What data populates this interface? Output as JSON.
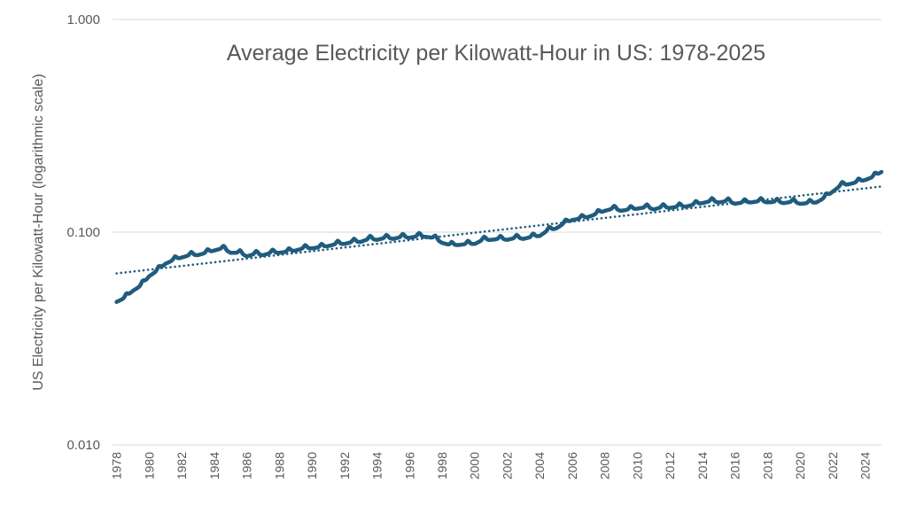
{
  "chart_data": {
    "type": "line",
    "title": "Average Electricity per Kilowatt-Hour in US: 1978-2025",
    "ylabel": "US Electricity per Kilowatt-Hour  (logarithmic scale)",
    "xlabel": "",
    "y_scale": "log",
    "ylim": [
      0.01,
      1.0
    ],
    "y_ticks": [
      "0.010",
      "0.100",
      "1.000"
    ],
    "y_tick_values": [
      0.01,
      0.1,
      1.0
    ],
    "x_ticks": [
      "1978",
      "1980",
      "1982",
      "1984",
      "1986",
      "1988",
      "1990",
      "1992",
      "1994",
      "1996",
      "1998",
      "2000",
      "2002",
      "2004",
      "2006",
      "2008",
      "2010",
      "2012",
      "2014",
      "2016",
      "2018",
      "2020",
      "2022",
      "2024"
    ],
    "x_tick_values": [
      1978,
      1980,
      1982,
      1984,
      1986,
      1988,
      1990,
      1992,
      1994,
      1996,
      1998,
      2000,
      2002,
      2004,
      2006,
      2008,
      2010,
      2012,
      2014,
      2016,
      2018,
      2020,
      2022,
      2024
    ],
    "xlim": [
      1977.75,
      2025.0
    ],
    "grid": "horizontal",
    "legend": "none",
    "series": [
      {
        "style": "solid-thick",
        "color": "#1f5c7e",
        "seasonal": "monthly summer peaks",
        "x": [
          1978.0,
          1978.5,
          1979.0,
          1979.5,
          1980.0,
          1980.5,
          1981.0,
          1981.5,
          1982.0,
          1982.5,
          1983.0,
          1983.5,
          1984.0,
          1984.5,
          1985.0,
          1985.5,
          1986.0,
          1986.5,
          1987.0,
          1987.5,
          1988.0,
          1988.5,
          1989.0,
          1989.5,
          1990.0,
          1990.5,
          1991.0,
          1991.5,
          1992.0,
          1992.5,
          1993.0,
          1993.5,
          1994.0,
          1994.5,
          1995.0,
          1995.5,
          1996.0,
          1996.5,
          1997.0,
          1997.5,
          1998.0,
          1998.5,
          1999.0,
          1999.5,
          2000.0,
          2000.5,
          2001.0,
          2001.5,
          2002.0,
          2002.5,
          2003.0,
          2003.5,
          2004.0,
          2004.5,
          2005.0,
          2005.5,
          2006.0,
          2006.5,
          2007.0,
          2007.5,
          2008.0,
          2008.5,
          2009.0,
          2009.5,
          2010.0,
          2010.5,
          2011.0,
          2011.5,
          2012.0,
          2012.5,
          2013.0,
          2013.5,
          2014.0,
          2014.5,
          2015.0,
          2015.5,
          2016.0,
          2016.5,
          2017.0,
          2017.5,
          2018.0,
          2018.5,
          2019.0,
          2019.5,
          2020.0,
          2020.5,
          2021.0,
          2021.5,
          2022.0,
          2022.5,
          2023.0,
          2023.5,
          2024.0,
          2024.5,
          2025.0
        ],
        "y": [
          0.047,
          0.049,
          0.053,
          0.056,
          0.062,
          0.066,
          0.071,
          0.074,
          0.076,
          0.078,
          0.078,
          0.08,
          0.082,
          0.084,
          0.08,
          0.08,
          0.077,
          0.079,
          0.078,
          0.08,
          0.08,
          0.081,
          0.082,
          0.084,
          0.084,
          0.085,
          0.086,
          0.088,
          0.088,
          0.09,
          0.09,
          0.093,
          0.092,
          0.094,
          0.093,
          0.095,
          0.094,
          0.096,
          0.095,
          0.094,
          0.089,
          0.087,
          0.087,
          0.088,
          0.088,
          0.092,
          0.092,
          0.093,
          0.092,
          0.094,
          0.093,
          0.095,
          0.096,
          0.102,
          0.104,
          0.11,
          0.114,
          0.116,
          0.118,
          0.122,
          0.126,
          0.129,
          0.126,
          0.128,
          0.129,
          0.131,
          0.128,
          0.131,
          0.13,
          0.132,
          0.132,
          0.135,
          0.137,
          0.14,
          0.138,
          0.14,
          0.136,
          0.138,
          0.138,
          0.14,
          0.138,
          0.139,
          0.137,
          0.139,
          0.136,
          0.137,
          0.138,
          0.145,
          0.155,
          0.166,
          0.168,
          0.172,
          0.176,
          0.182,
          0.192
        ]
      },
      {
        "style": "dotted-trendline",
        "color": "#1f5c7e",
        "x": [
          1978.0,
          2025.0
        ],
        "y": [
          0.064,
          0.164
        ]
      }
    ]
  }
}
